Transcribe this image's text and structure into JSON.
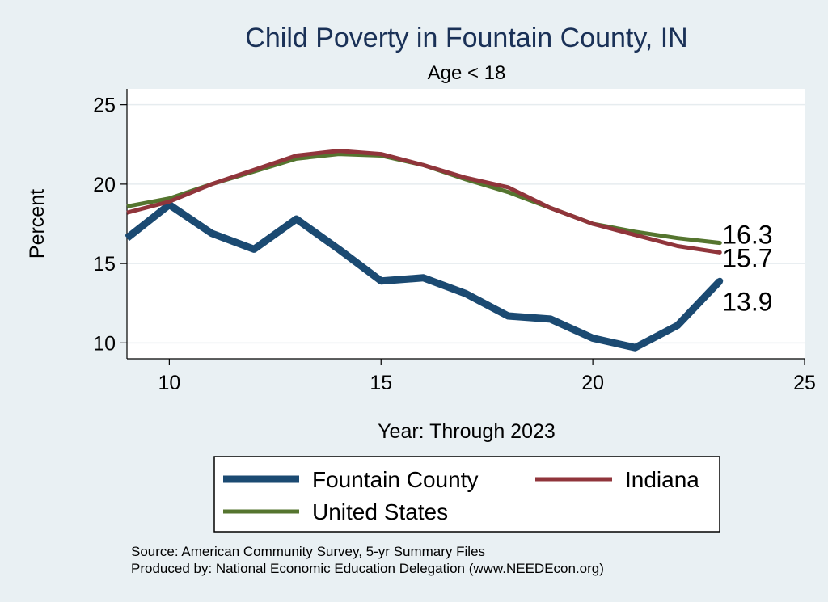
{
  "chart_data": {
    "type": "line",
    "title": "Child Poverty in Fountain County, IN",
    "subtitle": "Age < 18",
    "xlabel": "Year: Through 2023",
    "ylabel": "Percent",
    "xlim": [
      9,
      25
    ],
    "ylim": [
      9,
      26
    ],
    "x_ticks": [
      10,
      15,
      20,
      25
    ],
    "y_ticks": [
      10,
      15,
      20,
      25
    ],
    "grid": true,
    "legend_position": "bottom",
    "series": [
      {
        "name": "Fountain County",
        "color": "#1b4a72",
        "x": [
          9,
          10,
          11,
          12,
          13,
          14,
          15,
          16,
          17,
          18,
          19,
          20,
          21,
          22,
          23
        ],
        "values": [
          16.6,
          18.7,
          16.9,
          15.9,
          17.8,
          15.9,
          13.9,
          14.1,
          13.1,
          11.7,
          11.5,
          10.3,
          9.7,
          11.1,
          13.9
        ],
        "end_label": "13.9"
      },
      {
        "name": "Indiana",
        "color": "#90353b",
        "x": [
          9,
          10,
          11,
          12,
          13,
          14,
          15,
          16,
          17,
          18,
          19,
          20,
          21,
          22,
          23
        ],
        "values": [
          18.2,
          18.9,
          20.0,
          20.9,
          21.8,
          22.1,
          21.9,
          21.2,
          20.4,
          19.8,
          18.5,
          17.5,
          16.8,
          16.1,
          15.7
        ],
        "end_label": "15.7"
      },
      {
        "name": "United States",
        "color": "#55752f",
        "x": [
          9,
          10,
          11,
          12,
          13,
          14,
          15,
          16,
          17,
          18,
          19,
          20,
          21,
          22,
          23
        ],
        "values": [
          18.6,
          19.1,
          20.0,
          20.8,
          21.6,
          21.9,
          21.8,
          21.2,
          20.3,
          19.5,
          18.5,
          17.5,
          17.0,
          16.6,
          16.3
        ],
        "end_label": "16.3"
      }
    ]
  },
  "footer": {
    "source": "Source: American Community Survey, 5-yr Summary Files",
    "produced_by": "Produced by: National Economic Education Delegation (www.NEEDEcon.org)"
  }
}
